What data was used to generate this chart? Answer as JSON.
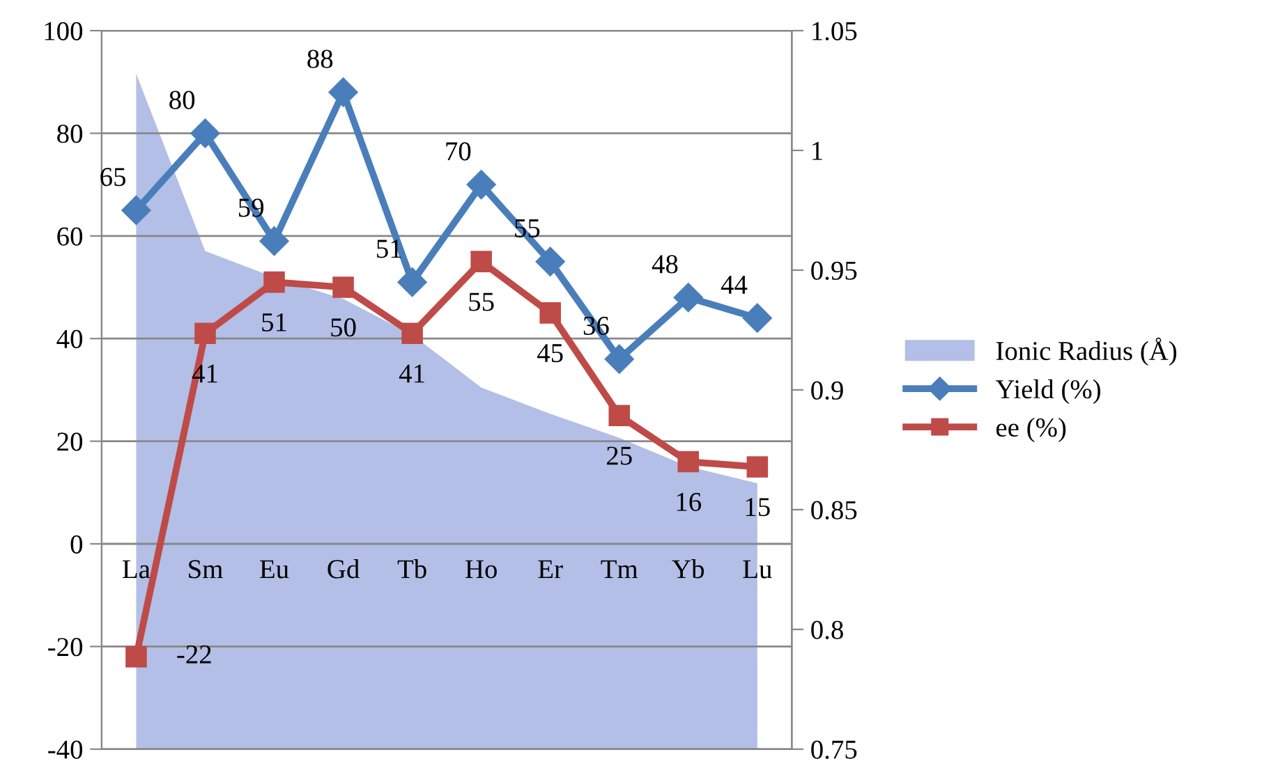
{
  "chart_data": {
    "type": "line",
    "categories": [
      "La",
      "Sm",
      "Eu",
      "Gd",
      "Tb",
      "Ho",
      "Er",
      "Tm",
      "Yb",
      "Lu"
    ],
    "series": [
      {
        "name": "Ionic Radius (Å)",
        "type": "area",
        "axis": "y2",
        "color": "#b3bfe6",
        "values": [
          1.032,
          0.958,
          0.947,
          0.938,
          0.923,
          0.901,
          0.89,
          0.88,
          0.868,
          0.861
        ]
      },
      {
        "name": "Yield (%)",
        "color": "#4a7ebb",
        "marker": "diamond",
        "values": [
          65,
          80,
          59,
          88,
          51,
          70,
          55,
          36,
          48,
          44
        ],
        "value_labels": [
          "65",
          "80",
          "59",
          "88",
          "51",
          "70",
          "55",
          "36",
          "48",
          "44"
        ]
      },
      {
        "name": "ee (%)",
        "color": "#be4b48",
        "marker": "square",
        "values": [
          -22,
          41,
          51,
          50,
          41,
          55,
          45,
          25,
          16,
          15
        ],
        "value_labels": [
          "-22",
          "41",
          "51",
          "50",
          "41",
          "55",
          "45",
          "25",
          "16",
          "15"
        ]
      }
    ],
    "ylim": [
      -40,
      100
    ],
    "yticks": [
      -40,
      -20,
      0,
      20,
      40,
      60,
      80,
      100
    ],
    "y2lim": [
      0.75,
      1.05
    ],
    "y2ticks": [
      0.75,
      0.8,
      0.85,
      0.9,
      0.95,
      1,
      1.05
    ],
    "grid": "y",
    "legend": "right",
    "line_style": "solid"
  }
}
